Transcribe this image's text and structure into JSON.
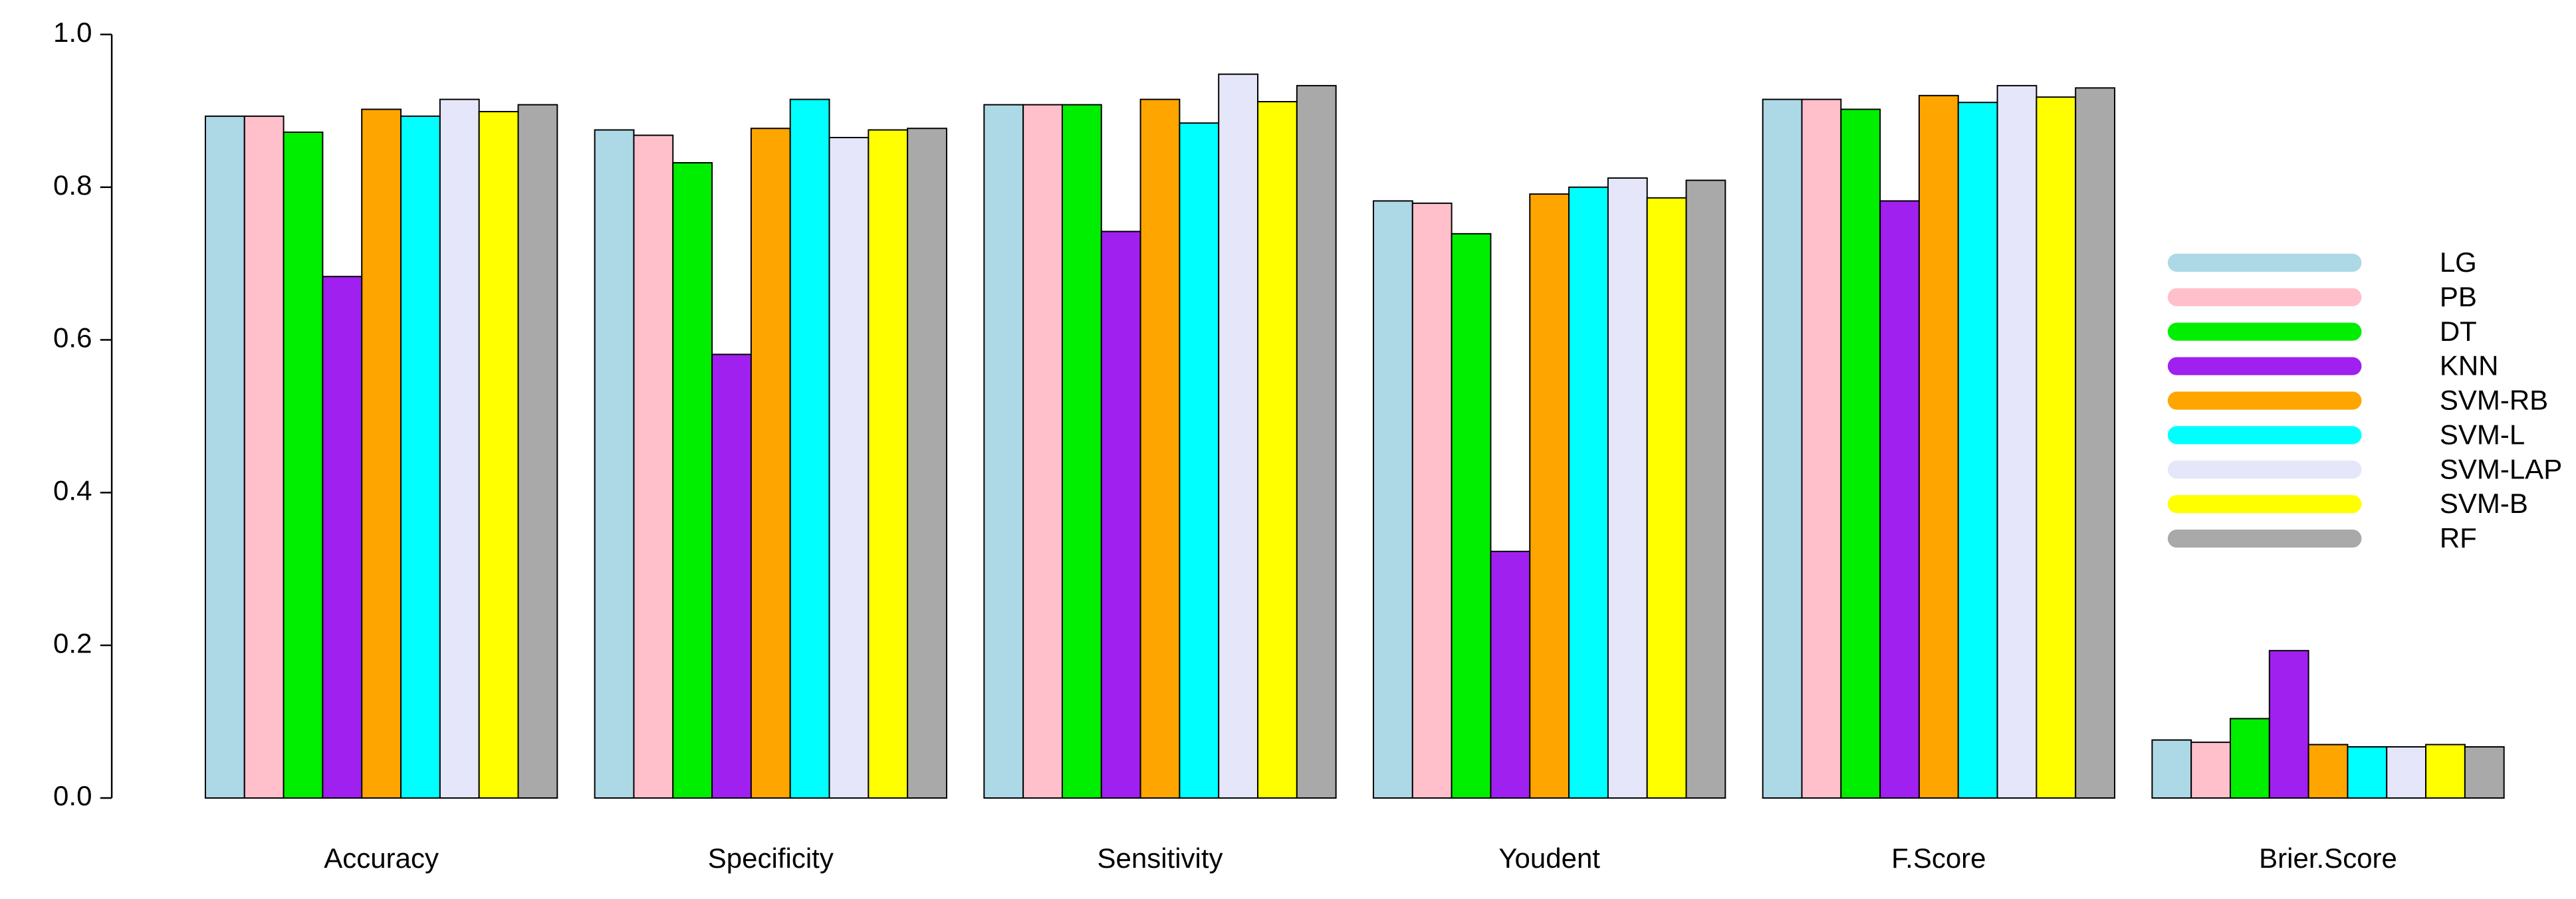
{
  "chart_data": {
    "type": "bar",
    "categories": [
      "Accuracy",
      "Specificity",
      "Sensitivity",
      "Youdent",
      "F.Score",
      "Brier.Score"
    ],
    "series": [
      {
        "name": "LG",
        "color": "#ADD8E6",
        "values": [
          0.893,
          0.875,
          0.908,
          0.782,
          0.915,
          0.076
        ]
      },
      {
        "name": "PB",
        "color": "#FFC0CB",
        "values": [
          0.893,
          0.868,
          0.908,
          0.779,
          0.915,
          0.073
        ]
      },
      {
        "name": "DT",
        "color": "#00EE00",
        "values": [
          0.872,
          0.832,
          0.908,
          0.739,
          0.902,
          0.104
        ]
      },
      {
        "name": "KNN",
        "color": "#A020F0",
        "values": [
          0.683,
          0.581,
          0.742,
          0.323,
          0.782,
          0.193
        ]
      },
      {
        "name": "SVM-RB",
        "color": "#FFA500",
        "values": [
          0.902,
          0.877,
          0.915,
          0.791,
          0.92,
          0.07
        ]
      },
      {
        "name": "SVM-L",
        "color": "#00FFFF",
        "values": [
          0.893,
          0.915,
          0.884,
          0.8,
          0.911,
          0.067
        ]
      },
      {
        "name": "SVM-LAP",
        "color": "#E6E6FA",
        "values": [
          0.915,
          0.865,
          0.948,
          0.812,
          0.933,
          0.067
        ]
      },
      {
        "name": "SVM-B",
        "color": "#FFFF00",
        "values": [
          0.899,
          0.875,
          0.912,
          0.786,
          0.918,
          0.07
        ]
      },
      {
        "name": "RF",
        "color": "#A9A9A9",
        "values": [
          0.908,
          0.877,
          0.933,
          0.809,
          0.93,
          0.067
        ]
      }
    ],
    "ylim": [
      0,
      1
    ],
    "yticks": [
      {
        "value": 0,
        "label": "0.0"
      },
      0.2,
      0.4,
      0.6,
      0.8,
      {
        "value": 1,
        "label": "1.0"
      }
    ],
    "legend": "right"
  }
}
